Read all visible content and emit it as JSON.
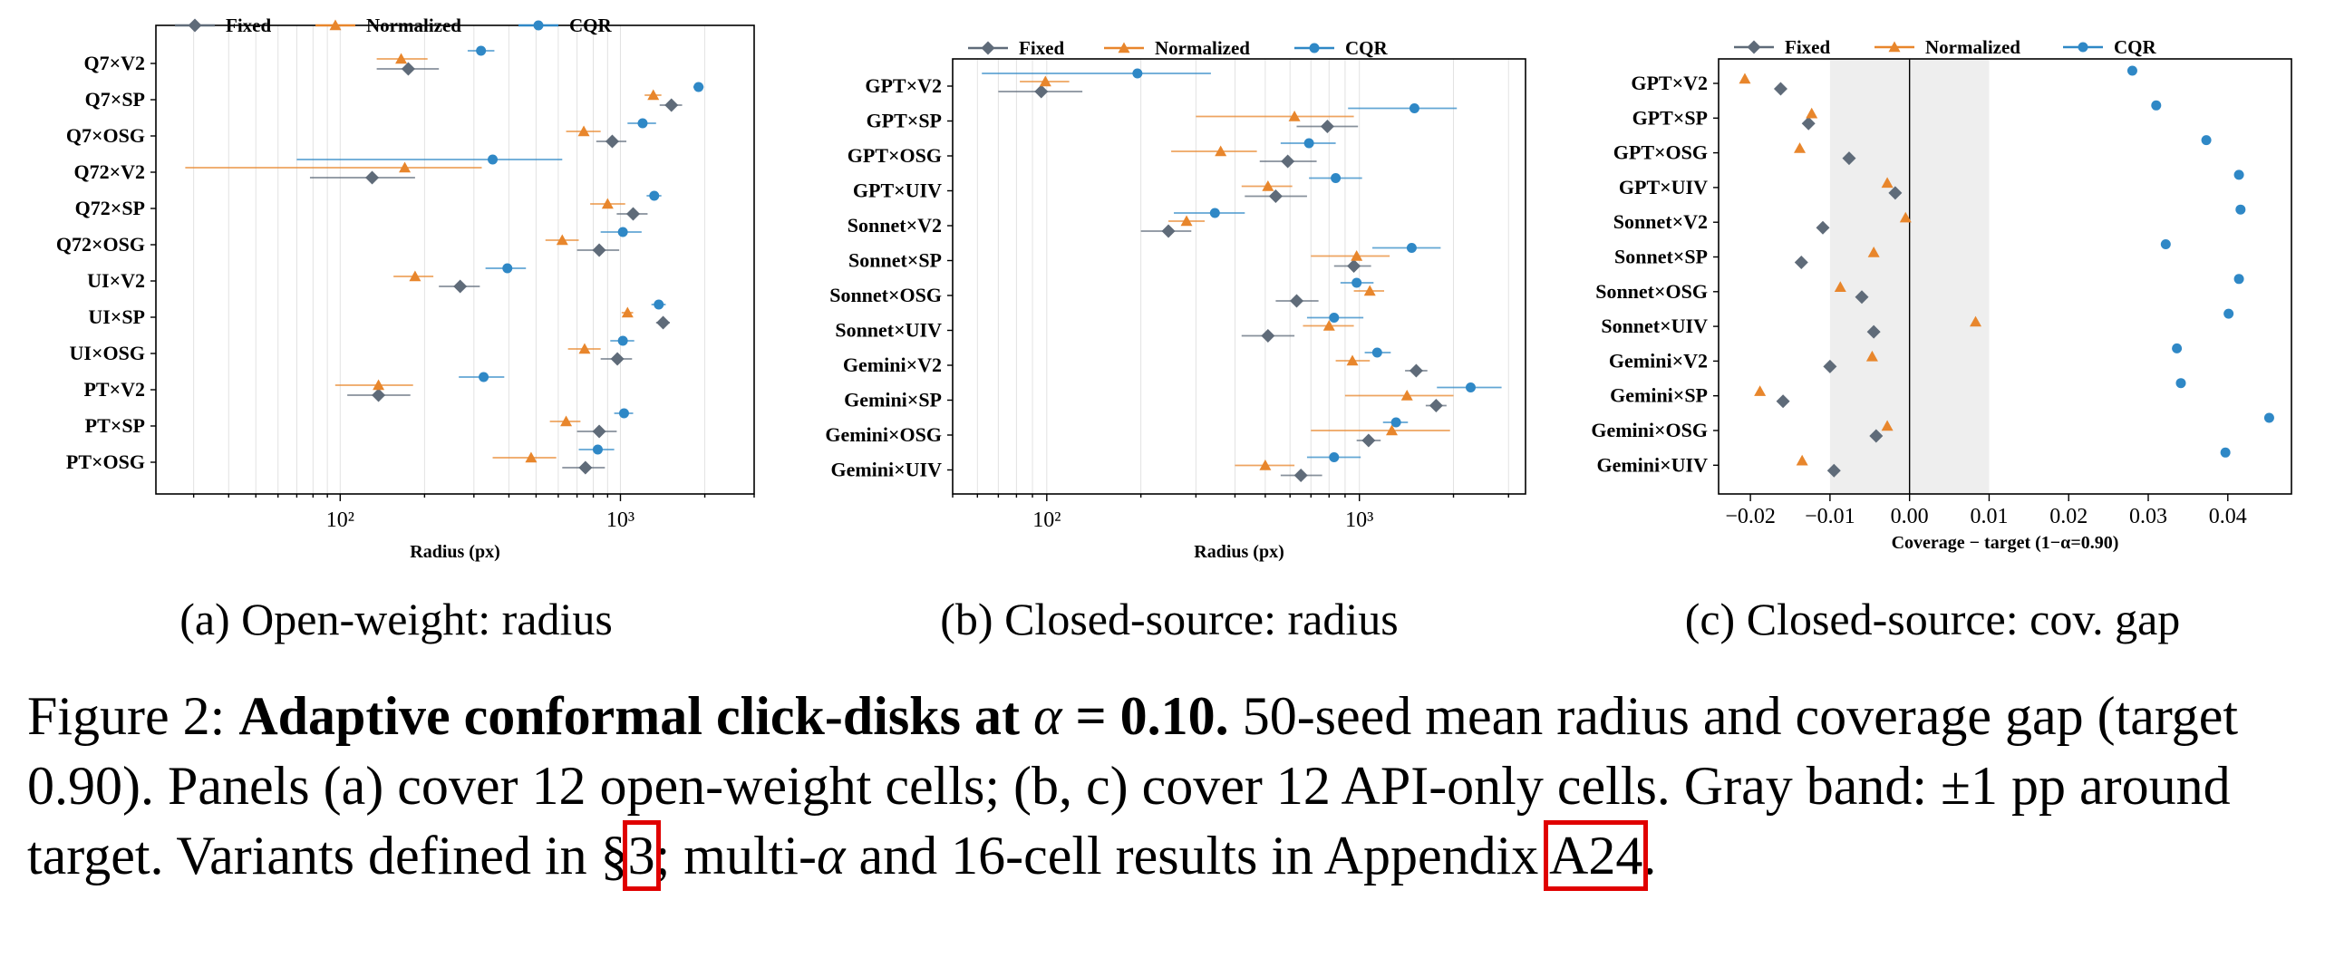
{
  "legend": [
    "Fixed",
    "Normalized",
    "CQR"
  ],
  "colors": {
    "Fixed": "#5f6b79",
    "Normalized": "#e8862c",
    "CQR": "#2f88c6"
  },
  "chart_data": [
    {
      "type": "scatter",
      "panel": "a",
      "subtitle": "(a) Open-weight: radius",
      "xlabel": "Radius (px)",
      "xscale": "log",
      "xlim": [
        22,
        3000
      ],
      "xticks": [
        "10²",
        "10³"
      ],
      "legend_position": "top",
      "categories": [
        "Q7×V2",
        "Q7×SP",
        "Q7×OSG",
        "Q72×V2",
        "Q72×SP",
        "Q72×OSG",
        "UI×V2",
        "UI×SP",
        "UI×OSG",
        "PT×V2",
        "PT×SP",
        "PT×OSG"
      ],
      "series": [
        {
          "name": "Fixed",
          "marker": "diamond",
          "values": [
            175,
            1520,
            935,
            130,
            1110,
            840,
            268,
            1420,
            975,
            137,
            840,
            750
          ],
          "low": [
            135,
            1380,
            820,
            78,
            970,
            700,
            225,
            1340,
            850,
            106,
            700,
            620
          ],
          "high": [
            225,
            1660,
            1050,
            185,
            1250,
            990,
            315,
            1500,
            1100,
            178,
            970,
            880
          ]
        },
        {
          "name": "Normalized",
          "marker": "triangle",
          "values": [
            165,
            1310,
            740,
            170,
            900,
            620,
            185,
            1060,
            745,
            137,
            640,
            480
          ],
          "low": [
            135,
            1220,
            640,
            28,
            780,
            540,
            155,
            1010,
            650,
            96,
            560,
            350
          ],
          "high": [
            205,
            1400,
            850,
            320,
            1040,
            710,
            215,
            1110,
            850,
            182,
            720,
            590
          ]
        },
        {
          "name": "CQR",
          "marker": "circle",
          "values": [
            318,
            1900,
            1200,
            350,
            1320,
            1020,
            395,
            1370,
            1020,
            325,
            1030,
            830
          ],
          "low": [
            285,
            1820,
            1060,
            70,
            1240,
            850,
            330,
            1290,
            920,
            265,
            950,
            710
          ],
          "high": [
            355,
            1980,
            1340,
            620,
            1400,
            1190,
            460,
            1450,
            1120,
            385,
            1110,
            950
          ]
        }
      ]
    },
    {
      "type": "scatter",
      "panel": "b",
      "subtitle": "(b) Closed-source: radius",
      "xlabel": "Radius (px)",
      "xscale": "log",
      "xlim": [
        50,
        3400
      ],
      "xticks": [
        "10²",
        "10³"
      ],
      "legend_position": "top",
      "categories": [
        "GPT×V2",
        "GPT×SP",
        "GPT×OSG",
        "GPT×UIV",
        "Sonnet×V2",
        "Sonnet×SP",
        "Sonnet×OSG",
        "Sonnet×UIV",
        "Gemini×V2",
        "Gemini×SP",
        "Gemini×OSG",
        "Gemini×UIV"
      ],
      "series": [
        {
          "name": "Fixed",
          "marker": "diamond",
          "values": [
            96,
            790,
            590,
            540,
            245,
            960,
            630,
            510,
            1520,
            1760,
            1070,
            650
          ],
          "low": [
            70,
            630,
            480,
            430,
            200,
            830,
            540,
            420,
            1400,
            1630,
            980,
            560
          ],
          "high": [
            130,
            990,
            730,
            680,
            290,
            1090,
            740,
            620,
            1650,
            1900,
            1170,
            760
          ]
        },
        {
          "name": "Normalized",
          "marker": "triangle",
          "values": [
            99,
            620,
            360,
            510,
            280,
            980,
            1080,
            800,
            950,
            1420,
            1270,
            500
          ],
          "low": [
            82,
            300,
            250,
            420,
            245,
            700,
            960,
            660,
            840,
            900,
            700,
            400
          ],
          "high": [
            118,
            960,
            470,
            610,
            320,
            1250,
            1200,
            960,
            1080,
            2000,
            1950,
            620
          ]
        },
        {
          "name": "CQR",
          "marker": "circle",
          "values": [
            195,
            1500,
            690,
            840,
            345,
            1470,
            980,
            830,
            1140,
            2270,
            1310,
            830
          ],
          "low": [
            62,
            920,
            560,
            690,
            255,
            1100,
            870,
            680,
            1040,
            1770,
            1190,
            680
          ],
          "high": [
            335,
            2050,
            840,
            1020,
            430,
            1820,
            1110,
            1030,
            1260,
            2850,
            1430,
            1010
          ]
        }
      ]
    },
    {
      "type": "scatter",
      "panel": "c",
      "subtitle": "(c) Closed-source: cov. gap",
      "xlabel": "Coverage − target (1−α=0.90)",
      "xlim": [
        -0.024,
        0.048
      ],
      "xticks": [
        -0.02,
        -0.01,
        0.0,
        0.01,
        0.02,
        0.03,
        0.04
      ],
      "band": [
        -0.01,
        0.01
      ],
      "legend_position": "top",
      "categories": [
        "GPT×V2",
        "GPT×SP",
        "GPT×OSG",
        "GPT×UIV",
        "Sonnet×V2",
        "Sonnet×SP",
        "Sonnet×OSG",
        "Sonnet×UIV",
        "Gemini×V2",
        "Gemini×SP",
        "Gemini×OSG",
        "Gemini×UIV"
      ],
      "series": [
        {
          "name": "Fixed",
          "marker": "diamond",
          "values": [
            -0.0162,
            -0.0127,
            -0.0076,
            -0.0018,
            -0.0109,
            -0.0136,
            -0.006,
            -0.0045,
            -0.01,
            -0.0159,
            -0.0042,
            -0.0095
          ]
        },
        {
          "name": "Normalized",
          "marker": "triangle",
          "values": [
            -0.0207,
            -0.0123,
            -0.0138,
            -0.0028,
            -0.0005,
            -0.0045,
            -0.0087,
            0.0083,
            -0.0047,
            -0.0188,
            -0.0028,
            -0.0135
          ]
        },
        {
          "name": "CQR",
          "marker": "circle",
          "values": [
            0.028,
            0.031,
            0.0373,
            0.0414,
            0.0416,
            0.0322,
            0.0414,
            0.0401,
            0.0336,
            0.0341,
            0.0452,
            0.0397
          ]
        }
      ]
    }
  ],
  "caption": {
    "figure_label": "Figure 2:",
    "bold": "Adaptive conformal click-disks at",
    "alpha_symbol": "α",
    "alpha_value": " = 0.10.",
    "line1_rest": " 50-seed mean radius and coverage gap (target 0.90). Panels (a) cover 12 open-weight cells; (b, c) cover 12 API-only cells. Gray band: ±1 pp around target. Variants defined in §",
    "section_ref": "3",
    "mid": "; multi-",
    "mid2": " and 16-cell results in Appendix ",
    "appendix_ref": "A24",
    "end": "."
  }
}
